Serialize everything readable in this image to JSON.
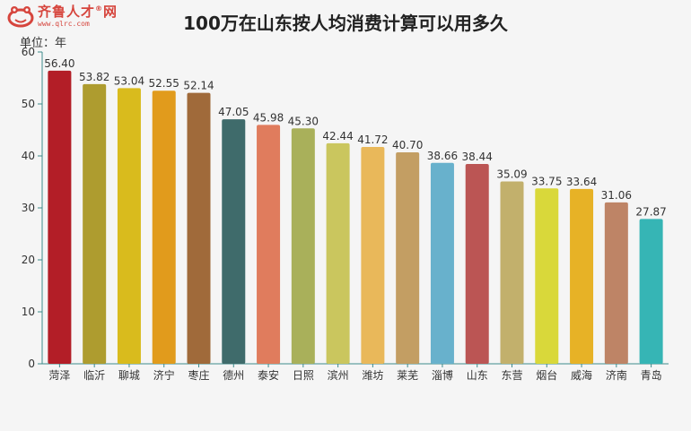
{
  "logo": {
    "name": "齐鲁人才",
    "registered": "®",
    "suffix": "网",
    "url": "www.qlrc.com"
  },
  "title": "100万在山东按人均消费计算可以用多久",
  "unit_label": "单位：年",
  "colors": {
    "axis": "#3d8a8a",
    "background": "#f5f5f5",
    "logo": "#d6453d"
  },
  "chart_data": {
    "type": "bar",
    "title": "100万在山东按人均消费计算可以用多久",
    "ylabel": "单位：年",
    "xlabel": "",
    "ylim": [
      0,
      60
    ],
    "yticks": [
      0,
      10,
      20,
      30,
      40,
      50,
      60
    ],
    "grid": false,
    "legend": "none",
    "categories": [
      "菏泽",
      "临沂",
      "聊城",
      "济宁",
      "枣庄",
      "德州",
      "泰安",
      "日照",
      "滨州",
      "潍坊",
      "莱芜",
      "淄博",
      "山东",
      "东营",
      "烟台",
      "威海",
      "济南",
      "青岛"
    ],
    "values": [
      56.4,
      53.82,
      53.04,
      52.55,
      52.14,
      47.05,
      45.98,
      45.3,
      42.44,
      41.72,
      40.7,
      38.66,
      38.44,
      35.09,
      33.75,
      33.64,
      31.06,
      27.87
    ],
    "value_labels": [
      "56.40",
      "53.82",
      "53.04",
      "52.55",
      "52.14",
      "47.05",
      "45.98",
      "45.30",
      "42.44",
      "41.72",
      "40.70",
      "38.66",
      "38.44",
      "35.09",
      "33.75",
      "33.64",
      "31.06",
      "27.87"
    ],
    "bar_colors": [
      "#b31e27",
      "#ae9c2f",
      "#d9bb1d",
      "#e19b1c",
      "#a06a3a",
      "#3f6b6b",
      "#e07c5d",
      "#a9b05a",
      "#cac65e",
      "#e9b85a",
      "#c39e63",
      "#68b1cc",
      "#bb5554",
      "#c2b06c",
      "#d9d83a",
      "#e7b226",
      "#be8466",
      "#36b5b5"
    ]
  }
}
